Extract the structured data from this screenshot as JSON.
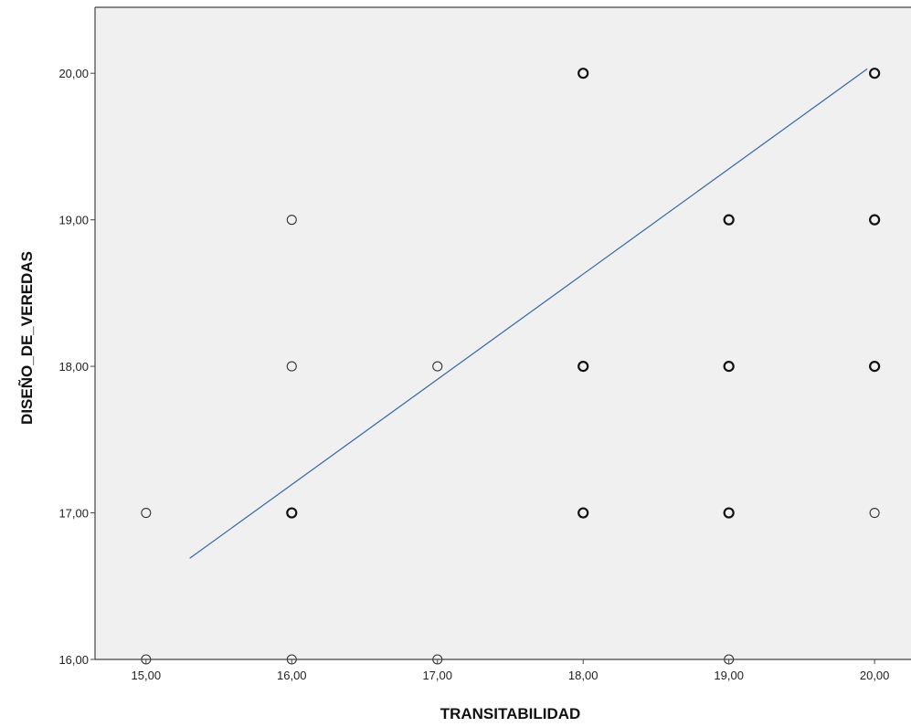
{
  "chart_data": {
    "type": "scatter",
    "title": "",
    "xlabel": "TRANSITABILIDAD",
    "ylabel": "DISEÑO_DE_VEREDAS",
    "xlim": [
      14.65,
      20.25
    ],
    "ylim": [
      16.0,
      20.45
    ],
    "x_ticks": [
      15,
      16,
      17,
      18,
      19,
      20
    ],
    "y_ticks": [
      16,
      17,
      18,
      19,
      20
    ],
    "x_tick_labels": [
      "15,00",
      "16,00",
      "17,00",
      "18,00",
      "19,00",
      "20,00"
    ],
    "y_tick_labels": [
      "16,00",
      "17,00",
      "18,00",
      "19,00",
      "20,00"
    ],
    "grid": false,
    "legend": "none",
    "points": [
      {
        "x": 15,
        "y": 16,
        "emphasis": false
      },
      {
        "x": 15,
        "y": 17,
        "emphasis": false
      },
      {
        "x": 16,
        "y": 16,
        "emphasis": false
      },
      {
        "x": 16,
        "y": 17,
        "emphasis": true
      },
      {
        "x": 16,
        "y": 18,
        "emphasis": false
      },
      {
        "x": 16,
        "y": 19,
        "emphasis": false
      },
      {
        "x": 17,
        "y": 16,
        "emphasis": false
      },
      {
        "x": 17,
        "y": 18,
        "emphasis": false
      },
      {
        "x": 18,
        "y": 17,
        "emphasis": true
      },
      {
        "x": 18,
        "y": 18,
        "emphasis": true
      },
      {
        "x": 18,
        "y": 20,
        "emphasis": true
      },
      {
        "x": 19,
        "y": 16,
        "emphasis": false
      },
      {
        "x": 19,
        "y": 17,
        "emphasis": true
      },
      {
        "x": 19,
        "y": 18,
        "emphasis": true
      },
      {
        "x": 19,
        "y": 19,
        "emphasis": true
      },
      {
        "x": 20,
        "y": 17,
        "emphasis": false
      },
      {
        "x": 20,
        "y": 18,
        "emphasis": true
      },
      {
        "x": 20,
        "y": 19,
        "emphasis": true
      },
      {
        "x": 20,
        "y": 20,
        "emphasis": true
      }
    ],
    "fit_line": {
      "x": [
        15.3,
        19.95
      ],
      "y": [
        16.69,
        20.03
      ]
    },
    "colors": {
      "plot_background": "#f0f0f0",
      "frame": "#444444",
      "marker": "#333333",
      "marker_emphasis": "#111111",
      "fit_line": "#3366aa"
    }
  }
}
